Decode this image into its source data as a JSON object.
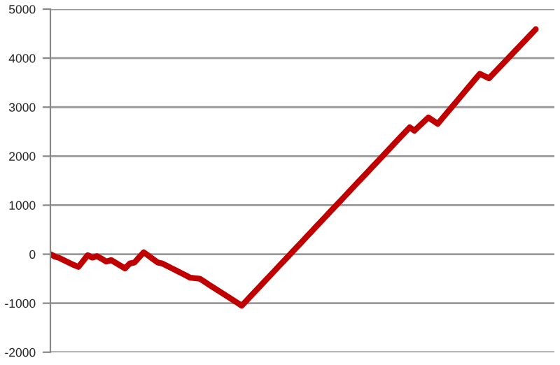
{
  "chart_data": {
    "type": "line",
    "tick_labels": "y",
    "grid": "y",
    "marker": "none",
    "line_style": "solid",
    "ylim": [
      -2000,
      5000
    ],
    "yticks": [
      -2000,
      -1000,
      0,
      1000,
      2000,
      3000,
      4000,
      5000
    ],
    "categories": [
      null,
      null,
      null,
      null,
      null,
      null,
      null,
      null,
      null,
      null,
      null,
      null,
      null,
      null,
      null,
      null,
      null,
      null,
      null,
      null,
      null,
      null,
      null,
      null,
      null,
      null,
      null,
      null,
      null,
      null,
      null,
      null,
      null,
      null,
      null,
      null,
      null,
      null,
      null,
      null,
      null,
      null,
      null,
      null,
      null,
      null,
      null,
      null,
      null,
      null,
      null,
      null,
      null,
      null,
      null,
      null,
      null,
      null,
      null,
      null,
      null,
      null,
      null,
      null,
      null,
      null,
      null,
      null,
      null,
      null,
      null,
      null,
      null,
      null,
      null,
      null,
      null,
      null,
      null,
      null,
      null,
      null,
      null,
      null,
      null,
      null,
      null,
      null,
      null,
      null,
      null,
      null,
      null,
      null,
      null,
      null,
      null,
      null,
      null,
      null,
      null,
      null,
      null,
      null,
      null
    ],
    "series": [
      {
        "color": "#c00000",
        "values": [
          0,
          -50,
          -80,
          -127,
          -173,
          -220,
          -260,
          -140,
          -20,
          -70,
          -40,
          -95,
          -150,
          -120,
          -177,
          -233,
          -290,
          -190,
          -170,
          -65,
          40,
          -30,
          -100,
          -170,
          -190,
          -238,
          -287,
          -335,
          -383,
          -432,
          -480,
          -490,
          -500,
          -561,
          -622,
          -683,
          -744,
          -806,
          -867,
          -928,
          -989,
          -1050,
          -949,
          -848,
          -747,
          -646,
          -544,
          -443,
          -342,
          -241,
          -140,
          -39,
          62,
          163,
          264,
          366,
          467,
          568,
          669,
          770,
          871,
          972,
          1073,
          1174,
          1276,
          1377,
          1478,
          1579,
          1680,
          1781,
          1882,
          1983,
          2084,
          2186,
          2287,
          2388,
          2489,
          2590,
          2520,
          2610,
          2700,
          2790,
          2725,
          2660,
          2773,
          2887,
          3000,
          3113,
          3227,
          3340,
          3453,
          3567,
          3680,
          3635,
          3590,
          3690,
          3790,
          3890,
          3990,
          4090,
          4190,
          4290,
          4390,
          4490,
          4590
        ]
      }
    ]
  }
}
